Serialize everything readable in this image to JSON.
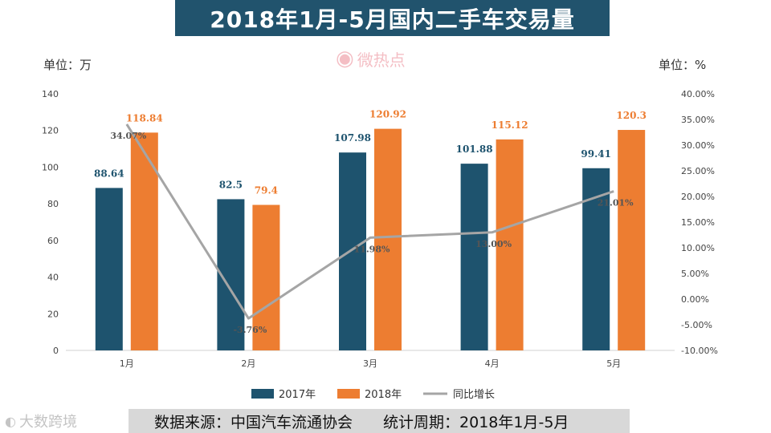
{
  "title": "2018年1月-5月国内二手车交易量",
  "unit_left": "单位：万",
  "unit_right": "单位：%",
  "logo_text": "微热点",
  "footer": {
    "source": "数据来源：中国汽车流通协会",
    "period": "统计周期：2018年1月-5月"
  },
  "watermark": "大数跨境",
  "colors": {
    "s2017": "#1e536e",
    "s2018": "#ed7d31",
    "line": "#a5a5a5",
    "title_bg": "#21536d"
  },
  "chart_data": {
    "type": "bar",
    "title": "2018年1月-5月国内二手车交易量",
    "categories": [
      "1月",
      "2月",
      "3月",
      "4月",
      "5月"
    ],
    "series": [
      {
        "name": "2017年",
        "type": "bar",
        "values": [
          88.64,
          82.5,
          107.98,
          101.88,
          99.41
        ],
        "labels": [
          "88.64",
          "82.5",
          "107.98",
          "101.88",
          "99.41"
        ]
      },
      {
        "name": "2018年",
        "type": "bar",
        "values": [
          118.84,
          79.4,
          120.92,
          115.12,
          120.3
        ],
        "labels": [
          "118.84",
          "79.4",
          "120.92",
          "115.12",
          "120.3"
        ]
      },
      {
        "name": "同比增长",
        "type": "line",
        "axis": "right",
        "values": [
          34.07,
          -3.76,
          11.98,
          13.0,
          21.01
        ],
        "labels": [
          "34.07%",
          "-3.76%",
          "11.98%",
          "13.00%",
          "21.01%"
        ]
      }
    ],
    "y_left": {
      "min": 0,
      "max": 140,
      "ticks": [
        "0",
        "20",
        "40",
        "60",
        "80",
        "100",
        "120",
        "140"
      ]
    },
    "y_right": {
      "min": -10,
      "max": 40,
      "ticks": [
        "-10.00%",
        "-5.00%",
        "0.00%",
        "5.00%",
        "10.00%",
        "15.00%",
        "20.00%",
        "25.00%",
        "30.00%",
        "35.00%",
        "40.00%"
      ]
    },
    "legend": [
      "2017年",
      "2018年",
      "同比增长"
    ],
    "legend_position": "bottom",
    "grid": false
  }
}
